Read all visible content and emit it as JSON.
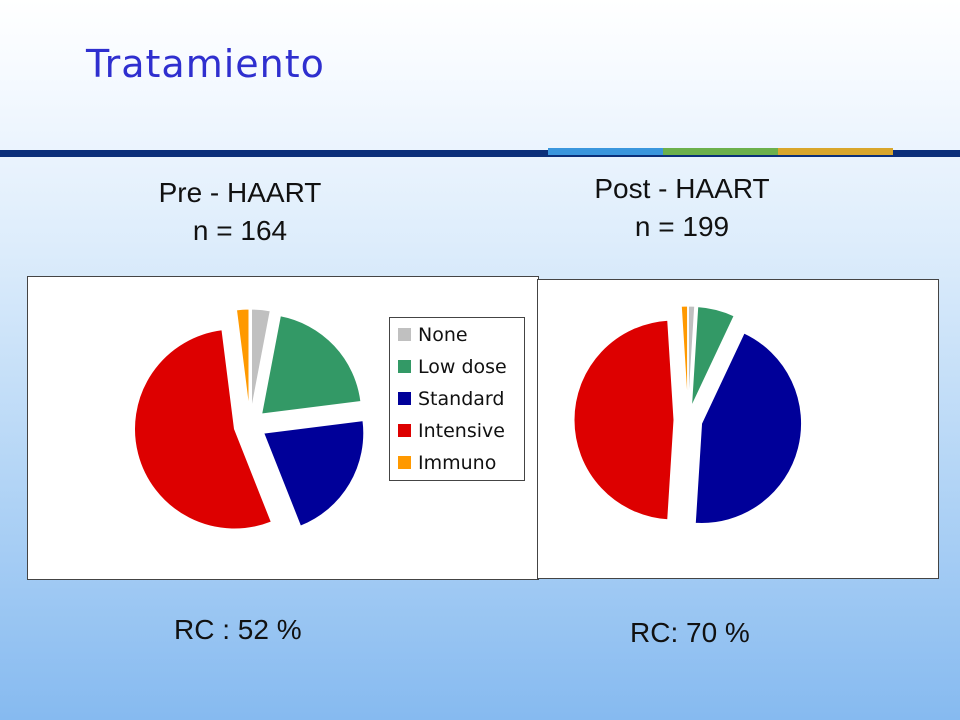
{
  "slide": {
    "title": "Tratamiento",
    "accents": [
      "#3a96dd",
      "#6cb04c",
      "#d9a62c"
    ]
  },
  "left": {
    "heading_line1": "Pre - HAART",
    "heading_line2": "n = 164",
    "result": "RC : 52 %"
  },
  "right": {
    "heading_line1": "Post - HAART",
    "heading_line2": "n = 199",
    "result": "RC: 70 %"
  },
  "chart_data": [
    {
      "type": "pie",
      "title": "Pre - HAART",
      "categories": [
        "None",
        "Low dose",
        "Standard",
        "Intensive",
        "Immuno"
      ],
      "values": [
        3,
        20,
        21,
        54,
        2
      ],
      "colors": [
        "#c0c0c0",
        "#339966",
        "#000099",
        "#dd0000",
        "#ff9900"
      ],
      "exploded": true,
      "legend_position": "right",
      "legend": [
        "None",
        "Low dose",
        "Standard",
        "Intensive",
        "Immuno"
      ]
    },
    {
      "type": "pie",
      "title": "Post - HAART",
      "categories": [
        "None",
        "Low dose",
        "Standard",
        "Intensive",
        "Immuno"
      ],
      "values": [
        1,
        6,
        44,
        48,
        1
      ],
      "colors": [
        "#c0c0c0",
        "#339966",
        "#000099",
        "#dd0000",
        "#ff9900"
      ],
      "exploded": true
    }
  ]
}
